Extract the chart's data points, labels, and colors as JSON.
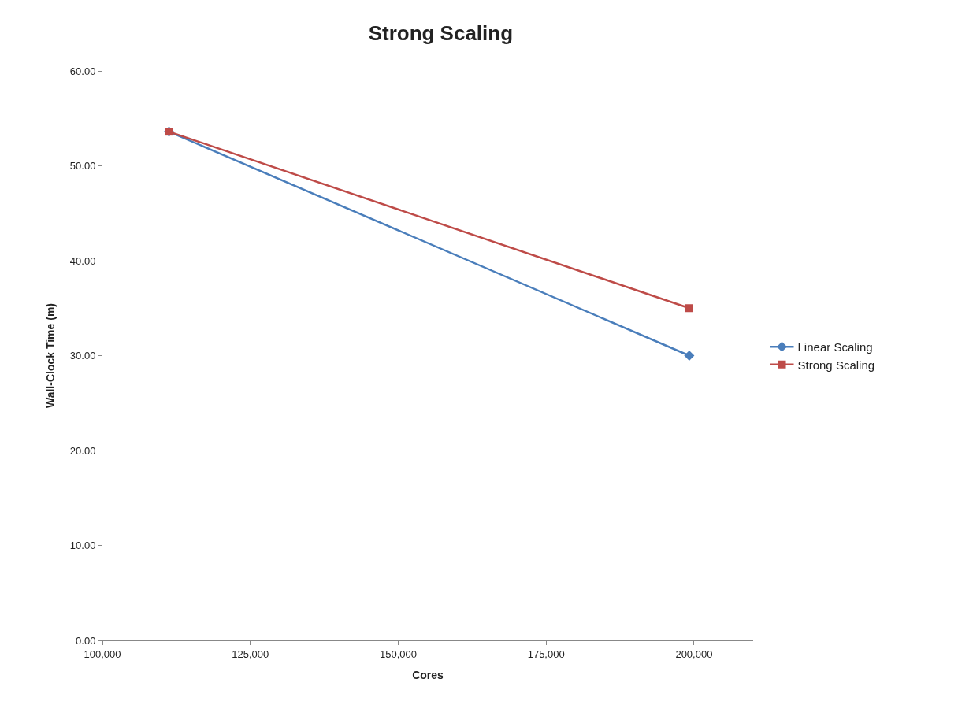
{
  "chart_data": {
    "type": "line",
    "title": "Strong Scaling",
    "xlabel": "Cores",
    "ylabel": "Wall-Clock Time (m)",
    "x": [
      111250,
      199200
    ],
    "series": [
      {
        "name": "Linear Scaling",
        "color": "#4a7ebb",
        "values": [
          53.6,
          30.0
        ],
        "marker": "diamond"
      },
      {
        "name": "Strong Scaling",
        "color": "#be4b48",
        "values": [
          53.6,
          35.0
        ],
        "marker": "square"
      }
    ],
    "xlim": [
      100000,
      210000
    ],
    "xticks": [
      {
        "value": 100000,
        "label": "100,000"
      },
      {
        "value": 125000,
        "label": "125,000"
      },
      {
        "value": 150000,
        "label": "150,000"
      },
      {
        "value": 175000,
        "label": "175,000"
      },
      {
        "value": 200000,
        "label": "200,000"
      }
    ],
    "ylim": [
      0,
      60
    ],
    "yticks": [
      {
        "value": 0,
        "label": "0.00"
      },
      {
        "value": 10,
        "label": "10.00"
      },
      {
        "value": 20,
        "label": "20.00"
      },
      {
        "value": 30,
        "label": "30.00"
      },
      {
        "value": 40,
        "label": "40.00"
      },
      {
        "value": 50,
        "label": "50.00"
      },
      {
        "value": 60,
        "label": "60.00"
      }
    ],
    "legend": "right",
    "line_style": "solid"
  }
}
